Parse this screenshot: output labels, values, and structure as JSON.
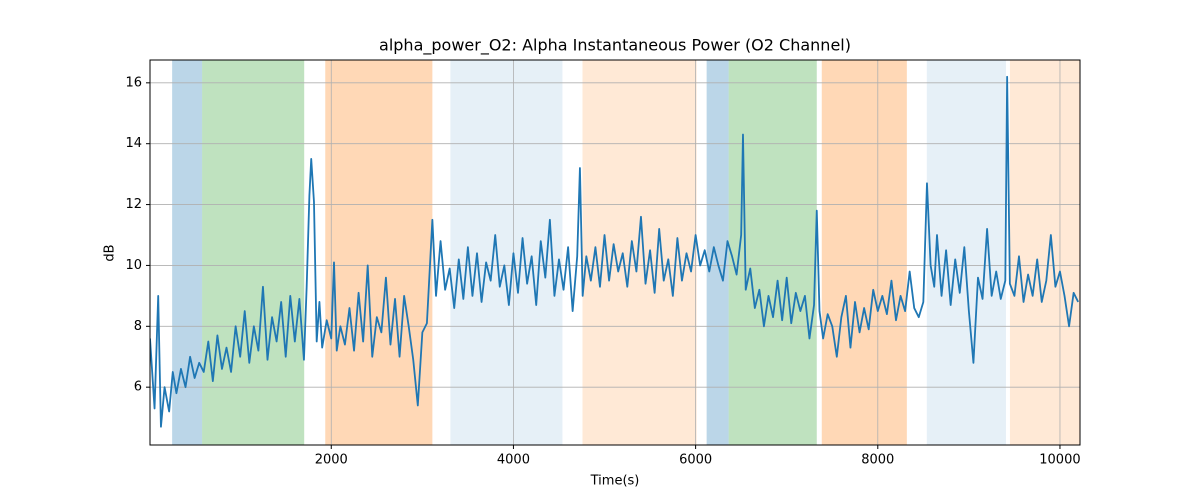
{
  "chart_data": {
    "type": "line",
    "title": "alpha_power_O2: Alpha Instantaneous Power (O2 Channel)",
    "xlabel": "Time(s)",
    "ylabel": "dB",
    "xlim": [
      10,
      10220
    ],
    "ylim": [
      4.1,
      16.75
    ],
    "xticks": [
      2000,
      4000,
      6000,
      8000,
      10000
    ],
    "yticks": [
      6,
      8,
      10,
      12,
      14,
      16
    ],
    "grid": true,
    "spans": [
      {
        "x0": 253,
        "x1": 582,
        "color": "#1f77b4",
        "alpha": 0.3
      },
      {
        "x0": 582,
        "x1": 1703,
        "color": "#2ca02c",
        "alpha": 0.3
      },
      {
        "x0": 1934,
        "x1": 3110,
        "color": "#ff7f0e",
        "alpha": 0.3
      },
      {
        "x0": 3308,
        "x1": 4538,
        "color": "#1f77b4",
        "alpha": 0.11
      },
      {
        "x0": 4758,
        "x1": 6011,
        "color": "#ff7f0e",
        "alpha": 0.17
      },
      {
        "x0": 6121,
        "x1": 6363,
        "color": "#1f77b4",
        "alpha": 0.3
      },
      {
        "x0": 6363,
        "x1": 7330,
        "color": "#2ca02c",
        "alpha": 0.3
      },
      {
        "x0": 7385,
        "x1": 8319,
        "color": "#ff7f0e",
        "alpha": 0.3
      },
      {
        "x0": 8538,
        "x1": 9407,
        "color": "#1f77b4",
        "alpha": 0.11
      },
      {
        "x0": 9451,
        "x1": 10231,
        "color": "#ff7f0e",
        "alpha": 0.17
      }
    ],
    "x": [
      10,
      60,
      100,
      130,
      170,
      220,
      260,
      300,
      350,
      400,
      450,
      500,
      550,
      600,
      650,
      700,
      750,
      800,
      850,
      900,
      950,
      1000,
      1050,
      1100,
      1150,
      1200,
      1250,
      1300,
      1350,
      1400,
      1450,
      1500,
      1550,
      1600,
      1650,
      1700,
      1730,
      1760,
      1780,
      1810,
      1840,
      1870,
      1900,
      1950,
      2000,
      2030,
      2060,
      2100,
      2150,
      2200,
      2250,
      2300,
      2350,
      2400,
      2450,
      2500,
      2550,
      2600,
      2650,
      2700,
      2750,
      2800,
      2850,
      2900,
      2950,
      3000,
      3050,
      3110,
      3150,
      3200,
      3250,
      3300,
      3350,
      3400,
      3450,
      3500,
      3550,
      3600,
      3650,
      3700,
      3750,
      3800,
      3850,
      3900,
      3950,
      4000,
      4050,
      4100,
      4150,
      4200,
      4250,
      4300,
      4350,
      4400,
      4450,
      4500,
      4550,
      4600,
      4650,
      4700,
      4730,
      4760,
      4800,
      4850,
      4900,
      4950,
      5000,
      5050,
      5100,
      5150,
      5200,
      5250,
      5300,
      5350,
      5400,
      5450,
      5500,
      5550,
      5600,
      5650,
      5700,
      5750,
      5800,
      5850,
      5900,
      5950,
      6000,
      6050,
      6100,
      6150,
      6200,
      6250,
      6300,
      6350,
      6400,
      6450,
      6500,
      6520,
      6550,
      6600,
      6650,
      6700,
      6750,
      6800,
      6850,
      6900,
      6950,
      7000,
      7050,
      7100,
      7150,
      7200,
      7250,
      7300,
      7330,
      7360,
      7400,
      7450,
      7500,
      7550,
      7600,
      7650,
      7700,
      7750,
      7800,
      7850,
      7900,
      7950,
      8000,
      8050,
      8100,
      8150,
      8200,
      8250,
      8300,
      8350,
      8400,
      8450,
      8500,
      8540,
      8580,
      8620,
      8650,
      8700,
      8750,
      8800,
      8850,
      8900,
      8950,
      9000,
      9050,
      9100,
      9150,
      9200,
      9250,
      9300,
      9350,
      9400,
      9420,
      9450,
      9500,
      9550,
      9600,
      9650,
      9700,
      9750,
      9800,
      9850,
      9900,
      9950,
      10000,
      10050,
      10100,
      10150,
      10200
    ],
    "series": [
      {
        "color": "#1f77b4",
        "values": [
          7.6,
          5.3,
          9.0,
          4.7,
          6.0,
          5.2,
          6.5,
          5.8,
          6.6,
          6.0,
          7.0,
          6.3,
          6.8,
          6.5,
          7.5,
          6.2,
          7.7,
          6.6,
          7.3,
          6.5,
          8.0,
          7.0,
          8.5,
          6.8,
          8.0,
          7.2,
          9.3,
          6.9,
          8.3,
          7.5,
          8.8,
          7.0,
          9.0,
          7.5,
          8.9,
          6.9,
          9.3,
          12.3,
          13.5,
          12.1,
          7.5,
          8.8,
          7.3,
          8.2,
          7.6,
          10.1,
          7.2,
          8.0,
          7.4,
          8.6,
          7.2,
          9.1,
          7.5,
          10.0,
          7.0,
          8.3,
          7.8,
          9.6,
          7.4,
          8.9,
          7.0,
          9.0,
          8.0,
          6.9,
          5.4,
          7.8,
          8.1,
          11.5,
          9.0,
          10.8,
          9.2,
          9.9,
          8.6,
          10.2,
          8.9,
          10.6,
          9.0,
          10.4,
          8.8,
          10.1,
          9.5,
          11.0,
          9.3,
          10.0,
          8.7,
          10.4,
          9.1,
          10.9,
          9.4,
          10.3,
          8.7,
          10.8,
          9.6,
          11.5,
          9.0,
          10.2,
          9.2,
          10.6,
          8.5,
          10.3,
          13.2,
          9.0,
          10.3,
          9.5,
          10.6,
          9.3,
          11.0,
          9.5,
          10.7,
          9.8,
          10.4,
          9.3,
          10.8,
          9.8,
          11.6,
          9.4,
          10.5,
          9.1,
          11.2,
          9.5,
          10.2,
          9.0,
          10.9,
          9.5,
          10.4,
          9.8,
          11.0,
          10.0,
          10.5,
          9.8,
          10.6,
          10.0,
          9.5,
          10.8,
          10.3,
          9.7,
          11.0,
          14.3,
          9.2,
          9.9,
          8.6,
          9.2,
          8.0,
          9.0,
          8.3,
          9.5,
          8.2,
          9.6,
          8.1,
          9.1,
          8.5,
          9.0,
          7.6,
          8.7,
          11.8,
          8.5,
          7.6,
          8.4,
          8.0,
          7.0,
          8.3,
          9.0,
          7.3,
          8.8,
          7.8,
          8.6,
          7.9,
          9.2,
          8.5,
          9.0,
          8.4,
          9.5,
          8.2,
          9.0,
          8.5,
          9.8,
          8.6,
          8.3,
          8.8,
          12.7,
          10.0,
          9.3,
          11.0,
          9.0,
          10.5,
          8.7,
          10.2,
          9.1,
          10.6,
          8.5,
          6.8,
          9.6,
          8.9,
          11.2,
          9.0,
          9.8,
          8.9,
          9.5,
          16.2,
          9.4,
          9.0,
          10.3,
          8.8,
          9.7,
          9.0,
          10.2,
          8.8,
          9.5,
          11.0,
          9.3,
          9.8,
          9.0,
          8.0,
          9.1,
          8.8
        ]
      }
    ]
  }
}
